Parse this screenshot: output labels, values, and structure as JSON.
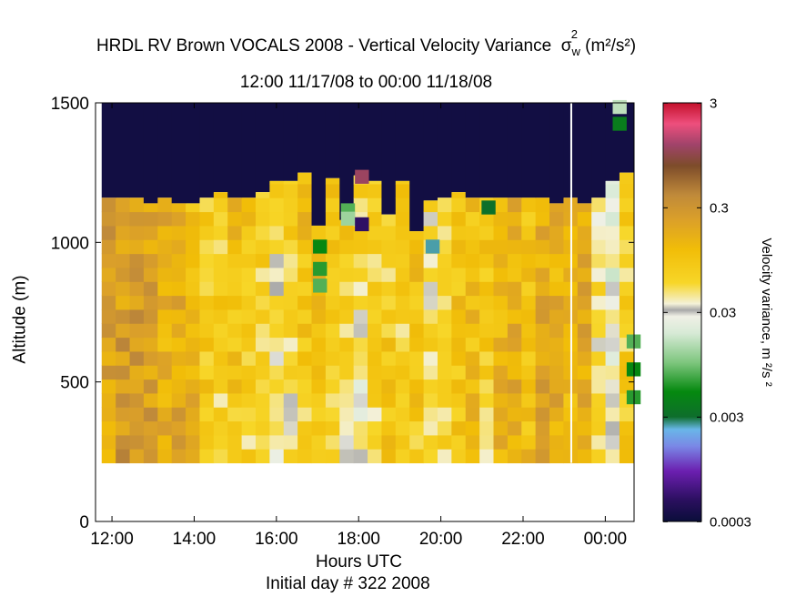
{
  "chart_data": {
    "type": "heatmap",
    "title_prefix": "HRDL RV Brown VOCALS 2008 - Vertical Velocity Variance",
    "title_symbol": "σ",
    "title_symbol_sub": "w",
    "title_symbol_sup": "2",
    "title_units": "(m²/s²)",
    "subtitle": "12:00 11/17/08 to 00:00 11/18/08",
    "xlabel": "Hours UTC",
    "xlabel2": "Initial day # 322  2008",
    "ylabel": "Altitude (m)",
    "colorbar_label": "Velocity variance, m ²/s ²",
    "x_ticks": [
      "12:00",
      "14:00",
      "16:00",
      "18:00",
      "20:00",
      "22:00",
      "00:00"
    ],
    "x_tick_hours": [
      12,
      14,
      16,
      18,
      20,
      22,
      24
    ],
    "xlim_hours": [
      11.6,
      24.7
    ],
    "y_ticks": [
      0,
      500,
      1000,
      1500
    ],
    "ylim": [
      0,
      1500
    ],
    "cbar_ticks": [
      "3",
      "0.3",
      "0.03",
      "0.003",
      "0.0003"
    ],
    "cbar_range_log10": [
      -3.52,
      0.48
    ],
    "scale": "log",
    "grid": false,
    "data_gap_hours": [
      23.15,
      23.2
    ],
    "bin_height_m": 50,
    "bottom_altitude_m": 210,
    "time_start_hour": 11.75,
    "time_step_hours": 0.3404,
    "columns": [
      {
        "top": 1160,
        "bl": -0.7,
        "bu": -0.6
      },
      {
        "top": 1160,
        "bl": -0.55,
        "bu": -0.65
      },
      {
        "top": 1160,
        "bl": -0.5,
        "bu": -0.7
      },
      {
        "top": 1140,
        "bl": -0.55,
        "bu": -0.75
      },
      {
        "top": 1160,
        "bl": -0.8,
        "bu": -0.8
      },
      {
        "top": 1140,
        "bl": -0.65,
        "bu": -0.9
      },
      {
        "top": 1140,
        "bl": -0.8,
        "bu": -1.0
      },
      {
        "top": 1160,
        "bl": -1.05,
        "bu": -1.1
      },
      {
        "top": 1180,
        "bl": -1.2,
        "bu": -1.1
      },
      {
        "top": 1160,
        "bl": -1.1,
        "bu": -0.9
      },
      {
        "top": 1160,
        "bl": -1.2,
        "bu": -1.0
      },
      {
        "top": 1180,
        "bl": -1.35,
        "bu": -1.1
      },
      {
        "top": 1220,
        "bl": -1.45,
        "bu": -1.2
      },
      {
        "top": 1220,
        "bl": -1.35,
        "bu": -1.1
      },
      {
        "top": 1250,
        "bl": -1.2,
        "bu": -0.9
      },
      {
        "top": 1060,
        "bl": -1.1,
        "bu": -0.9
      },
      {
        "top": 1230,
        "bl": -1.3,
        "bu": -0.9
      },
      {
        "top": 1080,
        "bl": -1.45,
        "bu": -1.0
      },
      {
        "top": 1240,
        "bl": -1.55,
        "bu": -1.1
      },
      {
        "top": 1220,
        "bl": -1.25,
        "bu": -1.1
      },
      {
        "top": 1100,
        "bl": -1.0,
        "bu": -1.2
      },
      {
        "top": 1220,
        "bl": -1.2,
        "bu": -1.1
      },
      {
        "top": 1040,
        "bl": -1.1,
        "bu": -0.9
      },
      {
        "top": 1150,
        "bl": -1.2,
        "bu": -1.3
      },
      {
        "top": 1160,
        "bl": -1.25,
        "bu": -1.2
      },
      {
        "top": 1180,
        "bl": -1.05,
        "bu": -1.0
      },
      {
        "top": 1160,
        "bl": -0.95,
        "bu": -0.95
      },
      {
        "top": 1160,
        "bl": -1.2,
        "bu": -1.0
      },
      {
        "top": 1160,
        "bl": -0.85,
        "bu": -0.9
      },
      {
        "top": 1160,
        "bl": -0.8,
        "bu": -0.8
      },
      {
        "top": 1160,
        "bl": -0.95,
        "bu": -1.0
      },
      {
        "top": 1160,
        "bl": -0.65,
        "bu": -0.8
      },
      {
        "top": 1140,
        "bl": -0.75,
        "bu": -0.85
      },
      {
        "top": 1160,
        "bl": -0.8,
        "bu": -0.9
      },
      {
        "top": 1140,
        "bl": -0.75,
        "bu": -0.75
      },
      {
        "top": 1160,
        "bl": -1.2,
        "bu": -1.4
      },
      {
        "top": 1220,
        "bl": -1.6,
        "bu": -1.5
      },
      {
        "top": 1250,
        "bl": -1.1,
        "bu": -1.2
      }
    ],
    "special_cells": [
      {
        "hour": 17.91,
        "altitude_m": 1210,
        "log10_var": 0.05
      },
      {
        "hour": 17.57,
        "altitude_m": 1090,
        "log10_var": -2.1
      },
      {
        "hour": 17.57,
        "altitude_m": 1060,
        "log10_var": -1.9
      },
      {
        "hour": 17.91,
        "altitude_m": 1040,
        "log10_var": -3.3
      },
      {
        "hour": 16.89,
        "altitude_m": 960,
        "log10_var": -2.3
      },
      {
        "hour": 16.89,
        "altitude_m": 880,
        "log10_var": -2.2
      },
      {
        "hour": 16.89,
        "altitude_m": 820,
        "log10_var": -2.1
      },
      {
        "hour": 20.99,
        "altitude_m": 1100,
        "log10_var": -2.5
      },
      {
        "hour": 19.63,
        "altitude_m": 960,
        "log10_var": -2.6
      },
      {
        "hour": 24.18,
        "altitude_m": 1460,
        "log10_var": -1.8
      },
      {
        "hour": 24.18,
        "altitude_m": 1400,
        "log10_var": -2.4
      },
      {
        "hour": 24.52,
        "altitude_m": 620,
        "log10_var": -2.1
      },
      {
        "hour": 24.52,
        "altitude_m": 520,
        "log10_var": -2.3
      },
      {
        "hour": 24.52,
        "altitude_m": 420,
        "log10_var": -2.2
      }
    ]
  }
}
